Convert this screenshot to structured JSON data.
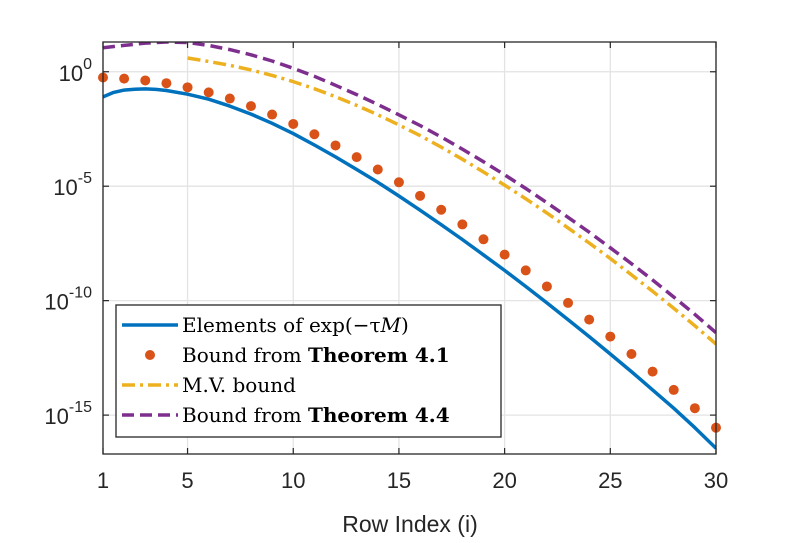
{
  "chart_data": {
    "type": "line",
    "title": "",
    "xlabel": "Row Index (i)",
    "ylabel": "",
    "yscale": "log",
    "xlim": [
      1,
      30
    ],
    "ylim_exponent": [
      -16.7,
      1.3
    ],
    "x_ticks": [
      1,
      5,
      10,
      15,
      20,
      25,
      30
    ],
    "y_tick_exponents": [
      0,
      -5,
      -10,
      -15
    ],
    "grid": true,
    "legend_position": "bottom-left",
    "series": [
      {
        "name": "Elements of exp(−τM)",
        "style": "solid",
        "color": "#0072BD",
        "x": [
          1,
          1.5,
          2,
          2.5,
          3,
          3.5,
          4,
          5,
          6,
          7,
          8,
          9,
          10,
          11,
          12,
          13,
          14,
          15,
          16,
          17,
          18,
          19,
          20,
          21,
          22,
          23,
          24,
          25,
          26,
          27,
          28,
          29,
          30
        ],
        "log10_y": [
          -1.1,
          -0.9,
          -0.8,
          -0.76,
          -0.75,
          -0.77,
          -0.82,
          -0.98,
          -1.2,
          -1.5,
          -1.85,
          -2.25,
          -2.7,
          -3.2,
          -3.72,
          -4.27,
          -4.83,
          -5.43,
          -6.05,
          -6.68,
          -7.33,
          -8.0,
          -8.68,
          -9.38,
          -10.1,
          -10.83,
          -11.57,
          -12.33,
          -13.1,
          -13.9,
          -14.7,
          -15.55,
          -16.45
        ]
      },
      {
        "name": "Bound from Theorem 4.1",
        "style": "dots",
        "color": "#D95319",
        "x": [
          1,
          2,
          3,
          4,
          5,
          6,
          7,
          8,
          9,
          10,
          11,
          12,
          13,
          14,
          15,
          16,
          17,
          18,
          19,
          20,
          21,
          22,
          23,
          24,
          25,
          26,
          27,
          28,
          29,
          30
        ],
        "log10_y": [
          -0.25,
          -0.3,
          -0.38,
          -0.5,
          -0.68,
          -0.9,
          -1.17,
          -1.5,
          -1.87,
          -2.28,
          -2.73,
          -3.22,
          -3.73,
          -4.27,
          -4.83,
          -5.42,
          -6.03,
          -6.67,
          -7.32,
          -7.99,
          -8.68,
          -9.38,
          -10.1,
          -10.83,
          -11.57,
          -12.33,
          -13.1,
          -13.9,
          -14.7,
          -15.55
        ]
      },
      {
        "name": "M.V. bound",
        "style": "dash-dot",
        "color": "#EDB120",
        "x": [
          5,
          6,
          7,
          8,
          9,
          10,
          11,
          12,
          13,
          14,
          15,
          16,
          17,
          18,
          19,
          20,
          21,
          22,
          23,
          24,
          25,
          26,
          27,
          28,
          29,
          30
        ],
        "log10_y": [
          0.6,
          0.45,
          0.28,
          0.08,
          -0.16,
          -0.43,
          -0.74,
          -1.09,
          -1.47,
          -1.88,
          -2.32,
          -2.79,
          -3.29,
          -3.82,
          -4.38,
          -4.95,
          -5.55,
          -6.17,
          -6.82,
          -7.48,
          -8.16,
          -8.87,
          -9.59,
          -10.33,
          -11.1,
          -11.9
        ]
      },
      {
        "name": "Bound from Theorem 4.4",
        "style": "dashed",
        "color": "#7E2F8E",
        "x": [
          1,
          2,
          3,
          4,
          5,
          6,
          7,
          8,
          9,
          10,
          11,
          12,
          13,
          14,
          15,
          16,
          17,
          18,
          19,
          20,
          21,
          22,
          23,
          24,
          25,
          26,
          27,
          28,
          29,
          30
        ],
        "log10_y": [
          1.05,
          1.15,
          1.25,
          1.3,
          1.28,
          1.15,
          0.97,
          0.74,
          0.47,
          0.15,
          -0.2,
          -0.59,
          -1.0,
          -1.43,
          -1.88,
          -2.35,
          -2.85,
          -3.38,
          -3.93,
          -4.5,
          -5.1,
          -5.72,
          -6.36,
          -7.01,
          -7.69,
          -8.38,
          -9.1,
          -9.84,
          -10.6,
          -11.4
        ]
      }
    ],
    "legend": [
      {
        "plain": "Elements of exp(−τ",
        "italic": "M",
        "plain_after": ")",
        "bold": ""
      },
      {
        "plain": "Bound from ",
        "italic": "",
        "plain_after": "",
        "bold": "Theorem 4.1"
      },
      {
        "plain": "M.V. bound",
        "italic": "",
        "plain_after": "",
        "bold": ""
      },
      {
        "plain": "Bound from ",
        "italic": "",
        "plain_after": "",
        "bold": "Theorem 4.4"
      }
    ],
    "y_tick_base": "10"
  }
}
